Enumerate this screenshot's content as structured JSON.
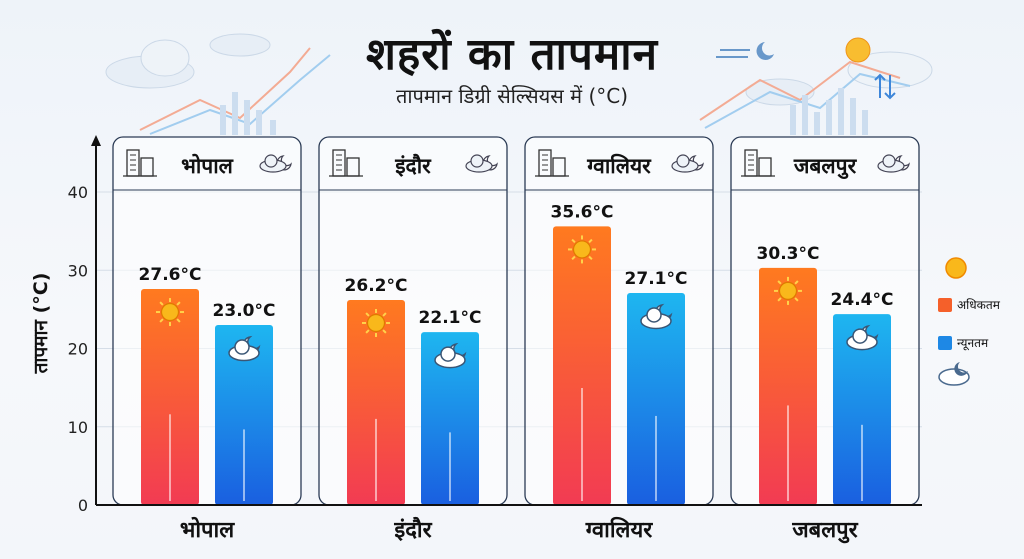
{
  "title": "शहरों का तापमान",
  "subtitle": "तापमान डिग्री सेल्सियस में (°C)",
  "chart_data": {
    "type": "bar",
    "title": "शहरों का तापमान",
    "subtitle": "तापमान डिग्री सेल्सियस में (°C)",
    "ylabel": "तापमान (°C)",
    "xlabel": "",
    "ylim": [
      0,
      40
    ],
    "yticks": [
      0,
      10,
      20,
      30,
      40
    ],
    "grid": true,
    "legend_position": "right",
    "categories": [
      "भोपाल",
      "इंदौर",
      "ग्वालियर",
      "जबलपुर"
    ],
    "series": [
      {
        "name": "अधिकतम",
        "values": [
          27.6,
          26.2,
          35.6,
          30.3
        ],
        "labels": [
          "27.6°C",
          "26.2°C",
          "35.6°C",
          "30.3°C"
        ],
        "color": "#f5602a"
      },
      {
        "name": "न्यूनतम",
        "values": [
          23.0,
          22.1,
          27.1,
          24.4
        ],
        "labels": [
          "23.0°C",
          "22.1°C",
          "27.1°C",
          "24.4°C"
        ],
        "color": "#1e88e5"
      }
    ]
  },
  "icons": {
    "panel_icons": [
      "building-icon",
      "palace-icon",
      "tower-icon",
      "building-icon"
    ],
    "weather_icons": [
      "partly-sunny-icon",
      "rain-cloud-icon",
      "rain-cloud-icon",
      "fog-moon-icon"
    ]
  }
}
